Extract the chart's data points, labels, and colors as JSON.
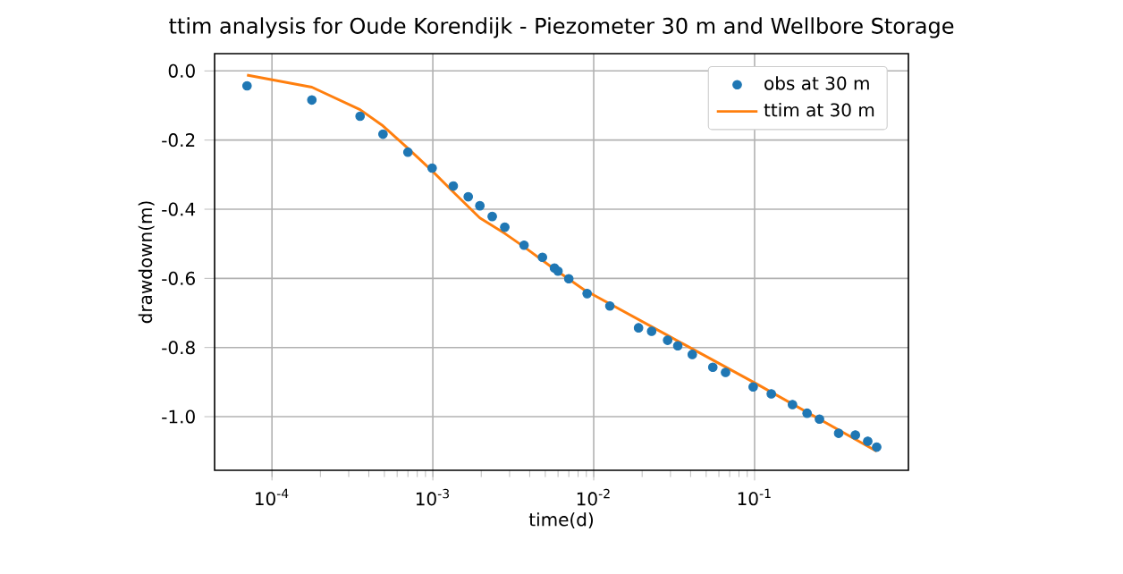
{
  "chart_data": {
    "type": "line",
    "title": "ttim analysis for Oude Korendijk - Piezometer 30 m and Wellbore Storage",
    "xlabel": "time(d)",
    "ylabel": "drawdown(m)",
    "log": "x",
    "grid": true,
    "legend": "top right",
    "xlim": [
      4.4e-05,
      0.904
    ],
    "ylim": [
      -1.155,
      0.05
    ],
    "xticks": [
      {
        "value": 0.0001,
        "label": "10$^{-4}$"
      },
      {
        "value": 0.001,
        "label": "10$^{-3}$"
      },
      {
        "value": 0.01,
        "label": "10$^{-2}$"
      },
      {
        "value": 0.1,
        "label": "10$^{-1}$"
      }
    ],
    "yticks": [
      {
        "value": 0,
        "label": "0.0"
      },
      -0.2,
      -0.4,
      -0.6,
      -0.8,
      {
        "value": -1.0,
        "label": "-1.0"
      }
    ],
    "series": [
      {
        "name": "obs at 30 m",
        "type": "scatter",
        "color": "#1f77b4",
        "x": [
          7e-05,
          0.000177,
          0.000353,
          0.00049,
          0.0007,
          0.00099,
          0.00134,
          0.00166,
          0.00196,
          0.00234,
          0.0028,
          0.00369,
          0.0048,
          0.0057,
          0.006,
          0.007,
          0.0091,
          0.0126,
          0.019,
          0.0229,
          0.0288,
          0.0333,
          0.041,
          0.055,
          0.066,
          0.098,
          0.127,
          0.172,
          0.212,
          0.253,
          0.333,
          0.423,
          0.505,
          0.574
        ],
        "values": [
          -0.043,
          -0.084,
          -0.131,
          -0.183,
          -0.235,
          -0.281,
          -0.333,
          -0.364,
          -0.39,
          -0.421,
          -0.452,
          -0.504,
          -0.539,
          -0.57,
          -0.579,
          -0.601,
          -0.644,
          -0.68,
          -0.743,
          -0.753,
          -0.779,
          -0.795,
          -0.82,
          -0.857,
          -0.872,
          -0.914,
          -0.934,
          -0.965,
          -0.99,
          -1.007,
          -1.048,
          -1.053,
          -1.071,
          -1.088
        ]
      },
      {
        "name": "ttim at 30 m",
        "color": "#ff7f0e",
        "x": [
          7e-05,
          0.000177,
          0.000353,
          0.00049,
          0.0007,
          0.00099,
          0.00134,
          0.00196,
          0.0028,
          0.00369,
          0.0055,
          0.0091,
          0.01,
          0.0288,
          0.1,
          0.574
        ],
        "values": [
          -0.012,
          -0.047,
          -0.112,
          -0.159,
          -0.224,
          -0.289,
          -0.35,
          -0.425,
          -0.47,
          -0.509,
          -0.568,
          -0.639,
          -0.648,
          -0.765,
          -0.902,
          -1.1
        ]
      }
    ]
  }
}
